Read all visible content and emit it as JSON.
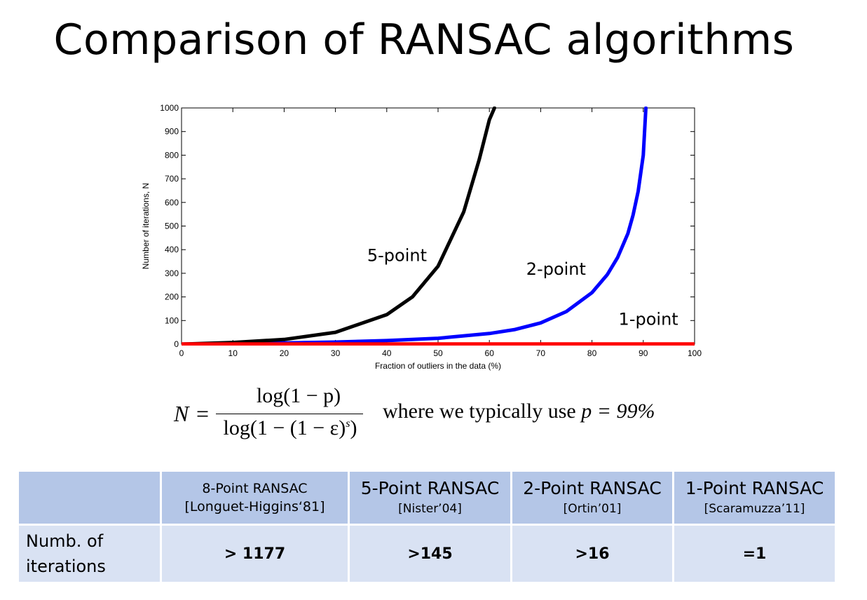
{
  "slide": {
    "title": "Comparison of RANSAC algorithms"
  },
  "chart_data": {
    "type": "line",
    "xlabel": "Fraction of outliers in the data (%)",
    "ylabel": "Number of iterations, N",
    "xlim": [
      0,
      100
    ],
    "ylim": [
      0,
      1000
    ],
    "xticks": [
      0,
      10,
      20,
      30,
      40,
      50,
      60,
      70,
      80,
      90,
      100
    ],
    "yticks": [
      0,
      100,
      200,
      300,
      400,
      500,
      600,
      700,
      800,
      900,
      1000
    ],
    "grid": false,
    "series": [
      {
        "name": "5-point",
        "color": "#000000",
        "x": [
          0,
          10,
          20,
          30,
          40,
          45,
          50,
          55,
          58,
          60,
          61
        ],
        "y": [
          0,
          7,
          20,
          50,
          125,
          200,
          330,
          560,
          780,
          950,
          1000
        ]
      },
      {
        "name": "2-point",
        "color": "#0000ff",
        "x": [
          0,
          10,
          20,
          30,
          40,
          50,
          60,
          65,
          70,
          75,
          80,
          83,
          85,
          87,
          88,
          89,
          90,
          90.5
        ],
        "y": [
          0,
          2,
          5,
          9,
          15,
          25,
          45,
          62,
          90,
          138,
          218,
          295,
          367,
          468,
          546,
          647,
          800,
          1000
        ]
      },
      {
        "name": "1-point",
        "color": "#ff0000",
        "x": [
          0,
          100
        ],
        "y": [
          1,
          1
        ]
      }
    ],
    "annotations": [
      "5-point",
      "2-point",
      "1-point"
    ]
  },
  "formula": {
    "lhs": "N",
    "equals": "=",
    "numerator": "log(1 − p)",
    "denominator": "log(1 − (1 − ε)",
    "exponent": "s",
    "denominator_close": ")",
    "where_text": "where we typically use ",
    "p_value": "p = 99%"
  },
  "table": {
    "headers": [
      {
        "name": "",
        "ref": ""
      },
      {
        "name": "8-Point RANSAC",
        "ref": "[Longuet-Higgins‘81]"
      },
      {
        "name": "5-Point RANSAC",
        "ref": "[Nister’04]"
      },
      {
        "name": "2-Point RANSAC",
        "ref": "[Ortin’01]"
      },
      {
        "name": "1-Point RANSAC",
        "ref": "[Scaramuzza’11]"
      }
    ],
    "row_label": "Numb. of iterations",
    "values": [
      "> 1177",
      ">145",
      ">16",
      "=1"
    ]
  }
}
